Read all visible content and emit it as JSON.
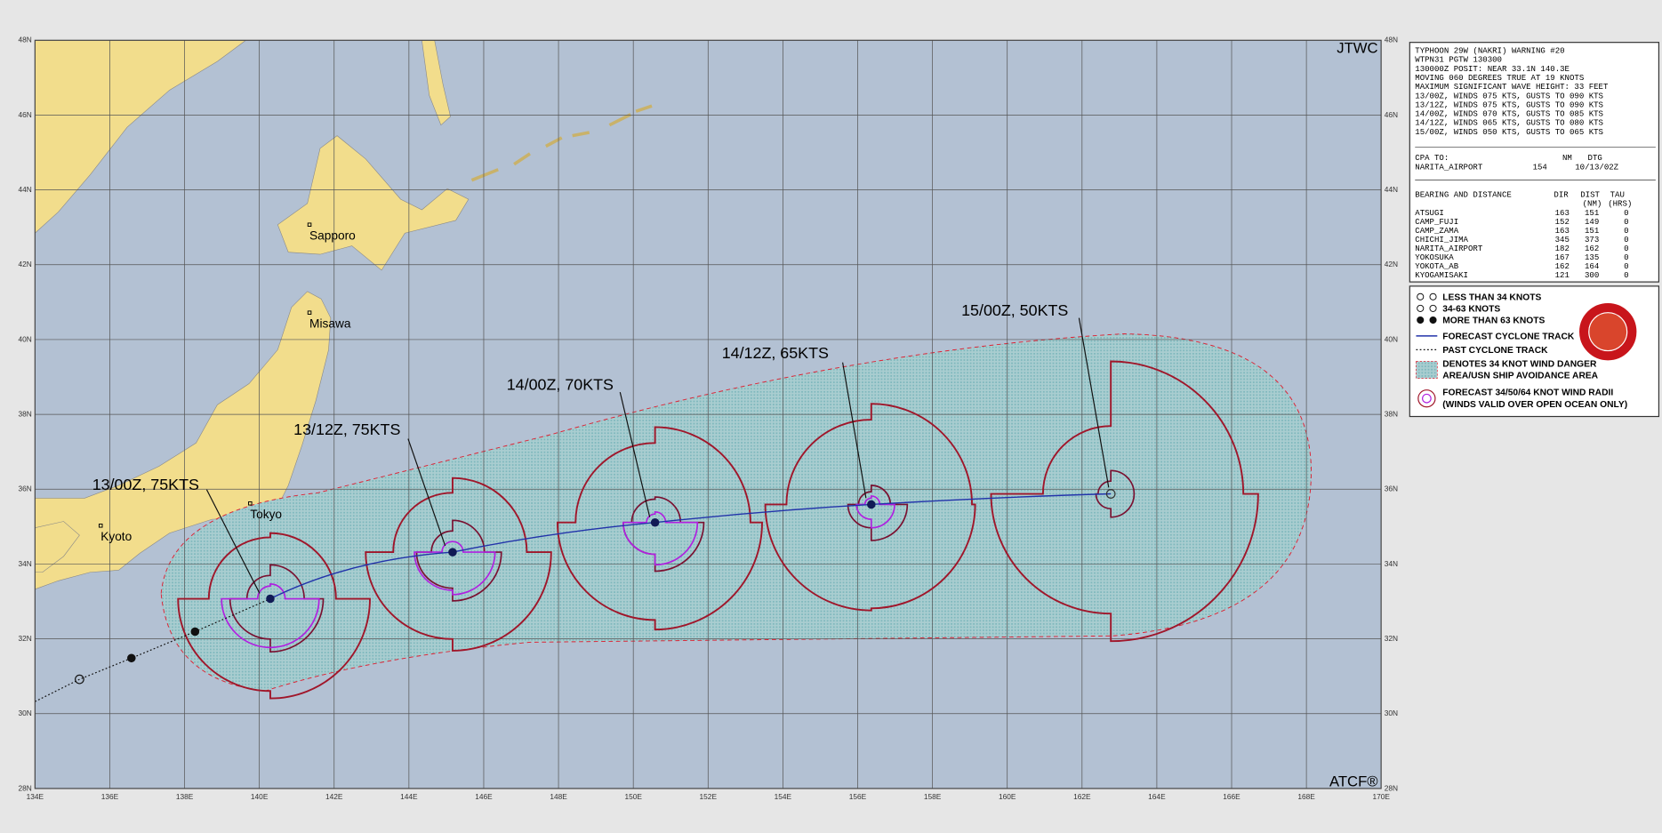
{
  "map": {
    "lat_labels": [
      "48N",
      "46N",
      "44N",
      "42N",
      "40N",
      "38N",
      "36N",
      "34N",
      "32N",
      "30N",
      "28N"
    ],
    "lon_labels": [
      "134E",
      "136E",
      "138E",
      "140E",
      "142E",
      "144E",
      "146E",
      "148E",
      "150E",
      "152E",
      "154E",
      "156E",
      "158E",
      "160E",
      "162E",
      "164E",
      "166E",
      "168E",
      "170E"
    ],
    "agency": "JTWC",
    "credit": "ATCF®",
    "cities": [
      "Sapporo",
      "Misawa",
      "Tokyo",
      "Kyoto"
    ],
    "forecast_labels": [
      "13/00Z,  75KTS",
      "13/12Z,  75KTS",
      "14/00Z,  70KTS",
      "14/12Z,  65KTS",
      "15/00Z,  50KTS"
    ]
  },
  "warning": {
    "lines": [
      "TYPHOON 29W (NAKRI) WARNING #20",
      "WTPN31 PGTW 130300",
      "130000Z POSIT: NEAR 33.1N 140.3E",
      "MOVING 060 DEGREES TRUE AT 19 KNOTS",
      "MAXIMUM SIGNIFICANT WAVE HEIGHT: 33 FEET",
      "13/00Z, WINDS 075 KTS, GUSTS TO 090 KTS",
      "13/12Z, WINDS 075 KTS, GUSTS TO 090 KTS",
      "14/00Z, WINDS 070 KTS, GUSTS TO 085 KTS",
      "14/12Z, WINDS 065 KTS, GUSTS TO 080 KTS",
      "15/00Z, WINDS 050 KTS, GUSTS TO 065 KTS"
    ],
    "cpa": {
      "header": [
        "CPA TO:",
        "NM",
        "DTG"
      ],
      "row": [
        "NARITA_AIRPORT",
        "154",
        "10/13/02Z"
      ]
    },
    "bearing": {
      "header": [
        "BEARING AND DISTANCE",
        "DIR",
        "DIST",
        "TAU"
      ],
      "subheader": [
        "(NM)",
        "(HRS)"
      ],
      "rows": [
        [
          "ATSUGI",
          "163",
          "151",
          "0"
        ],
        [
          "CAMP_FUJI",
          "152",
          "149",
          "0"
        ],
        [
          "CAMP_ZAMA",
          "163",
          "151",
          "0"
        ],
        [
          "CHICHI_JIMA",
          "345",
          "373",
          "0"
        ],
        [
          "NARITA_AIRPORT",
          "182",
          "162",
          "0"
        ],
        [
          "YOKOSUKA",
          "167",
          "135",
          "0"
        ],
        [
          "YOKOTA_AB",
          "162",
          "164",
          "0"
        ],
        [
          "KYOGAMISAKI",
          "121",
          "300",
          "0"
        ]
      ]
    }
  },
  "legend": {
    "items": [
      "LESS THAN 34 KNOTS",
      "34-63 KNOTS",
      "MORE THAN 63 KNOTS",
      "FORECAST CYCLONE TRACK",
      "PAST CYCLONE TRACK",
      "DENOTES 34 KNOT WIND DANGER",
      "AREA/USN SHIP AVOIDANCE AREA",
      "FORECAST 34/50/64 KNOT WIND RADII",
      "(WINDS VALID OVER OPEN OCEAN ONLY)"
    ]
  }
}
